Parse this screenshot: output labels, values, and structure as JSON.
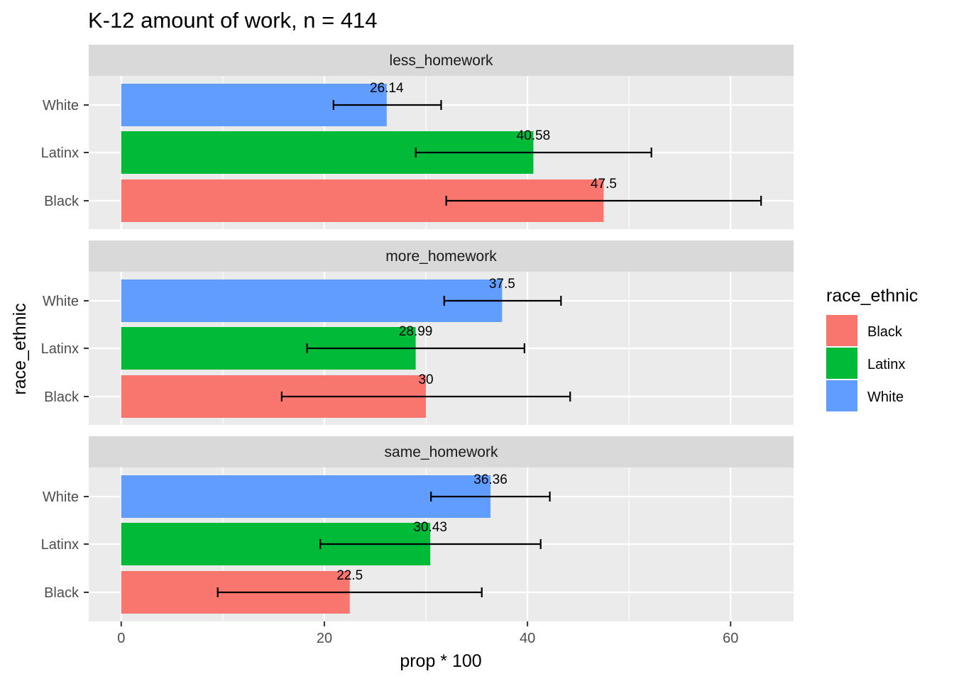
{
  "chart_data": {
    "type": "bar",
    "orientation": "horizontal",
    "title": "K-12 amount of work, n = 414",
    "xlabel": "prop * 100",
    "ylabel": "race_ethnic",
    "xlim": [
      -3.2,
      66.2
    ],
    "xticks": [
      0,
      20,
      40,
      60
    ],
    "tick_labels": [
      "0",
      "20",
      "40",
      "60"
    ],
    "categories": [
      "White",
      "Latinx",
      "Black"
    ],
    "facets": [
      {
        "name": "less_homework",
        "bars": [
          {
            "group": "White",
            "value": 26.14,
            "label": "26.14",
            "err_low": 20.9,
            "err_high": 31.5
          },
          {
            "group": "Latinx",
            "value": 40.58,
            "label": "40.58",
            "err_low": 29.0,
            "err_high": 52.2
          },
          {
            "group": "Black",
            "value": 47.5,
            "label": "47.5",
            "err_low": 32.0,
            "err_high": 63.0
          }
        ]
      },
      {
        "name": "more_homework",
        "bars": [
          {
            "group": "White",
            "value": 37.5,
            "label": "37.5",
            "err_low": 31.8,
            "err_high": 43.3
          },
          {
            "group": "Latinx",
            "value": 28.99,
            "label": "28.99",
            "err_low": 18.3,
            "err_high": 39.7
          },
          {
            "group": "Black",
            "value": 30,
            "label": "30",
            "err_low": 15.8,
            "err_high": 44.2
          }
        ]
      },
      {
        "name": "same_homework",
        "bars": [
          {
            "group": "White",
            "value": 36.36,
            "label": "36.36",
            "err_low": 30.5,
            "err_high": 42.2
          },
          {
            "group": "Latinx",
            "value": 30.43,
            "label": "30.43",
            "err_low": 19.6,
            "err_high": 41.3
          },
          {
            "group": "Black",
            "value": 22.5,
            "label": "22.5",
            "err_low": 9.5,
            "err_high": 35.5
          }
        ]
      }
    ],
    "legend": {
      "title": "race_ethnic",
      "placement": "right",
      "items": [
        {
          "name": "Black",
          "color": "#F8766D"
        },
        {
          "name": "Latinx",
          "color": "#00BA38"
        },
        {
          "name": "White",
          "color": "#619CFF"
        }
      ]
    },
    "grid": true
  }
}
